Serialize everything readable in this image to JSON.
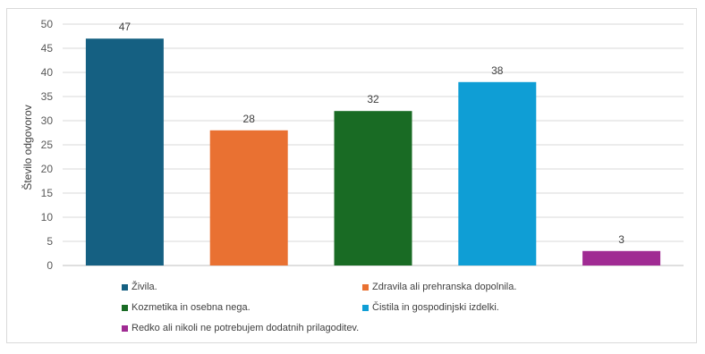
{
  "chart_data": {
    "type": "bar",
    "ylabel": "Število odgovorov",
    "ylim": [
      0,
      50
    ],
    "yticks": [
      0,
      5,
      10,
      15,
      20,
      25,
      30,
      35,
      40,
      45,
      50
    ],
    "grid": true,
    "legend_position": "bottom",
    "categories": [
      "Živila.",
      "Zdravila ali prehranska dopolnila.",
      "Kozmetika in osebna nega.",
      "Čistila in gospodinjski izdelki.",
      "Redko ali nikoli ne potrebujem dodatnih prilagoditev."
    ],
    "values": [
      47,
      28,
      32,
      38,
      3
    ],
    "colors": [
      "#156082",
      "#e97132",
      "#196b24",
      "#0f9ed5",
      "#a02b93"
    ]
  }
}
